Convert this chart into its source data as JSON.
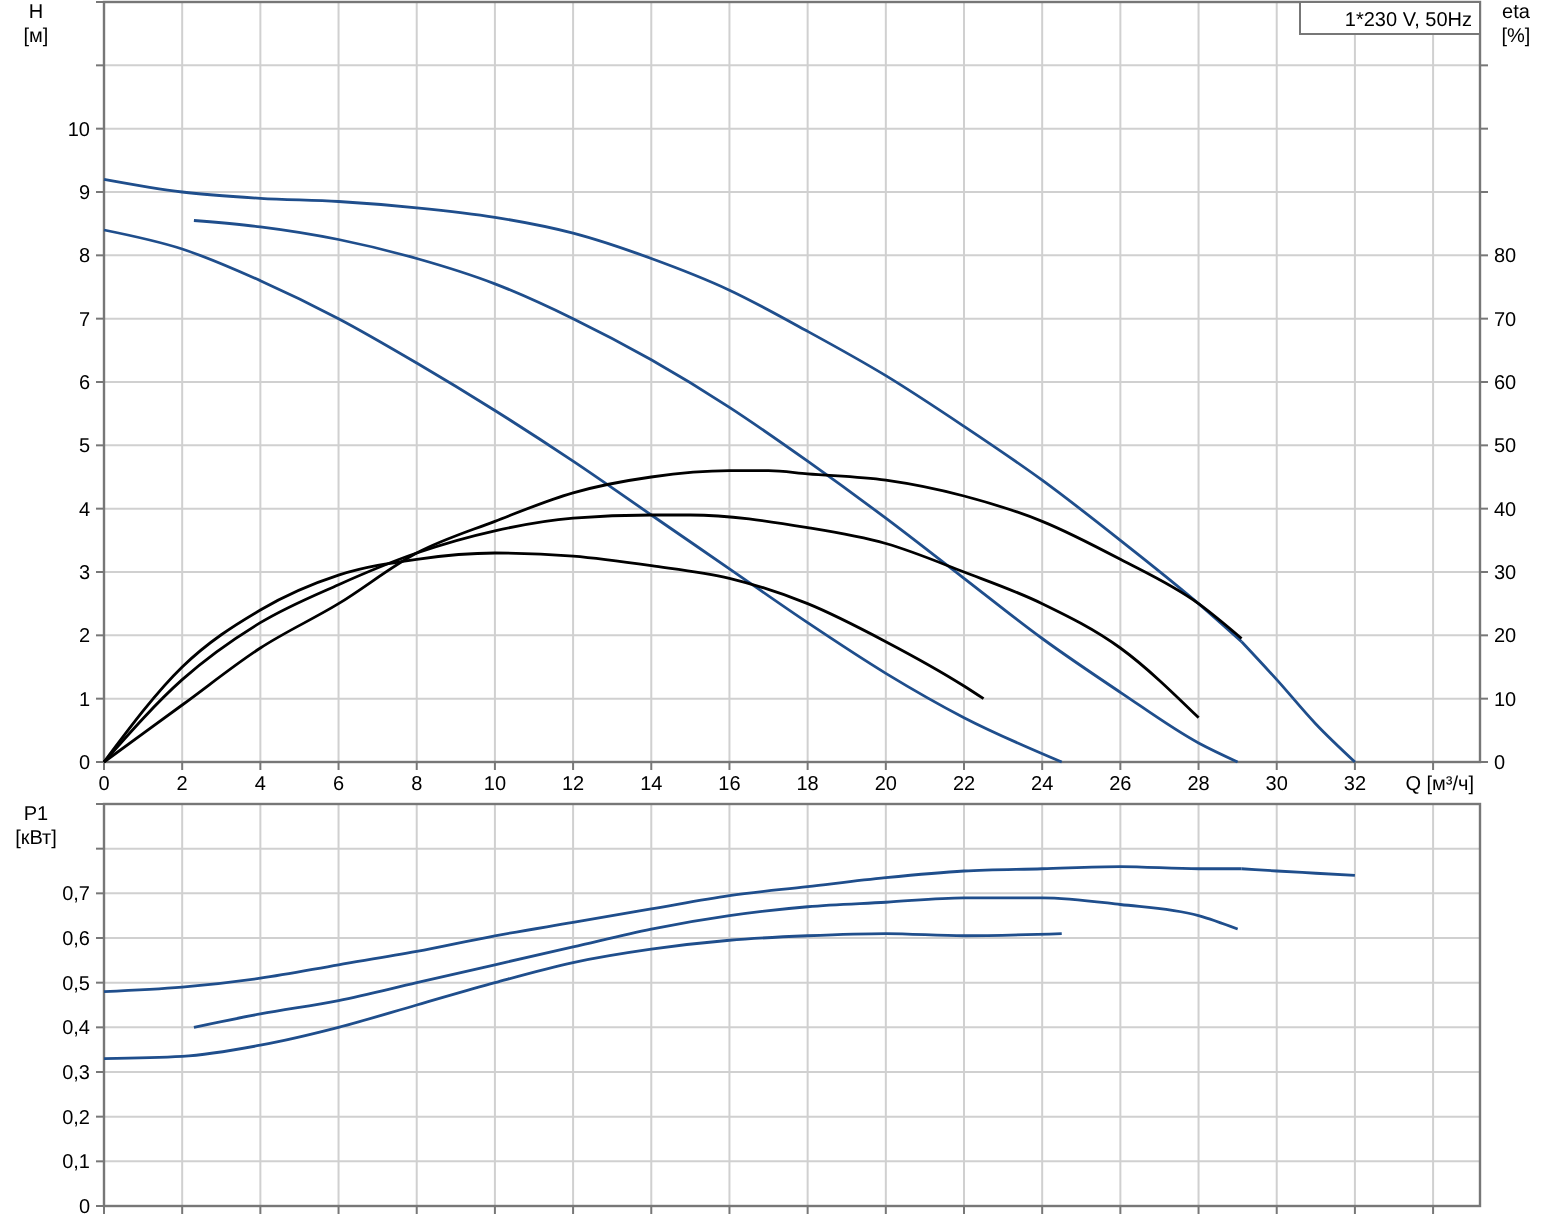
{
  "chart_data": [
    {
      "type": "line",
      "title": "1*230 V, 50Hz",
      "ylabel": "H [м]",
      "y2label": "eta [%]",
      "xlabel": "Q [м³/ч]",
      "xlim": [
        0,
        35.2
      ],
      "xticks": [
        0,
        2,
        4,
        6,
        8,
        10,
        12,
        14,
        16,
        18,
        20,
        22,
        24,
        26,
        28,
        30,
        32,
        {
          "value": 34,
          "label": null
        }
      ],
      "ylim": [
        0,
        12
      ],
      "yticks": [
        0,
        1,
        2,
        3,
        4,
        5,
        6,
        7,
        8,
        9,
        10,
        {
          "value": 11,
          "label": null
        },
        {
          "value": 12,
          "label": null
        }
      ],
      "y2lim": [
        0,
        120
      ],
      "y2ticks": [
        0,
        10,
        20,
        30,
        40,
        50,
        60,
        70,
        80,
        {
          "value": 90,
          "label": null
        },
        {
          "value": 100,
          "label": null
        },
        {
          "value": 110,
          "label": null
        }
      ],
      "grid": true,
      "series": [
        {
          "color": "#1f4e8c",
          "x": [
            0,
            2,
            4,
            6,
            8,
            10,
            12,
            14,
            16,
            18,
            20,
            22,
            24,
            26,
            28,
            29.1
          ],
          "values": [
            9.2,
            9.0,
            8.9,
            8.85,
            8.75,
            8.6,
            8.35,
            7.95,
            7.45,
            6.8,
            6.1,
            5.3,
            4.45,
            3.5,
            2.5,
            1.9
          ]
        },
        {
          "color": "#1f4e8c",
          "x": [
            29.1,
            30,
            31,
            32
          ],
          "values": [
            1.9,
            1.3,
            0.6,
            0
          ]
        },
        {
          "color": "#1f4e8c",
          "x": [
            2.3,
            4,
            6,
            8,
            10,
            12,
            14,
            16,
            18,
            20,
            22,
            24,
            26,
            28,
            29
          ],
          "values": [
            8.55,
            8.45,
            8.25,
            7.95,
            7.55,
            7.0,
            6.35,
            5.6,
            4.75,
            3.85,
            2.9,
            1.95,
            1.1,
            0.3,
            0
          ]
        },
        {
          "color": "#1f4e8c",
          "x": [
            0,
            2,
            4,
            6,
            8,
            10,
            12,
            14,
            16,
            18,
            20,
            22,
            24.5
          ],
          "values": [
            8.4,
            8.1,
            7.6,
            7.0,
            6.3,
            5.55,
            4.75,
            3.9,
            3.05,
            2.2,
            1.4,
            0.7,
            0
          ]
        },
        {
          "color": "#000000",
          "axis": "y2",
          "x": [
            0,
            2,
            4,
            6,
            8,
            10,
            12,
            14,
            16,
            17,
            18,
            20,
            22,
            24,
            26,
            28,
            29.1
          ],
          "values": [
            0,
            9,
            18,
            25,
            33,
            38,
            42.5,
            45,
            46,
            46,
            45.5,
            44.5,
            42,
            38,
            32,
            25,
            19.5
          ]
        },
        {
          "color": "#000000",
          "axis": "y2",
          "x": [
            0,
            2,
            4,
            6,
            8,
            10,
            12,
            14,
            15,
            18,
            20,
            22,
            24,
            26,
            28
          ],
          "values": [
            0,
            13,
            22,
            28,
            33,
            36.5,
            38.5,
            39,
            39,
            37,
            34.5,
            30,
            25,
            18,
            7
          ]
        },
        {
          "color": "#000000",
          "axis": "y2",
          "x": [
            0,
            2,
            4,
            6,
            8,
            10,
            12,
            14,
            16,
            18,
            20,
            22,
            22.5
          ],
          "values": [
            0,
            15,
            24,
            29.5,
            32,
            33,
            32.5,
            31,
            29,
            25,
            19,
            12,
            10
          ]
        }
      ]
    },
    {
      "type": "line",
      "ylabel": "P1 [кВт]",
      "xlim": [
        0,
        35.2
      ],
      "xticks": [
        0,
        2,
        4,
        6,
        8,
        10,
        12,
        14,
        16,
        18,
        20,
        22,
        24,
        26,
        28,
        30,
        32,
        34
      ],
      "ylim": [
        0,
        0.9
      ],
      "yticks": [
        {
          "value": 0,
          "label": "0"
        },
        {
          "value": 0.1,
          "label": "0,1"
        },
        {
          "value": 0.2,
          "label": "0,2"
        },
        {
          "value": 0.3,
          "label": "0,3"
        },
        {
          "value": 0.4,
          "label": "0,4"
        },
        {
          "value": 0.5,
          "label": "0,5"
        },
        {
          "value": 0.6,
          "label": "0,6"
        },
        {
          "value": 0.7,
          "label": "0,7"
        },
        {
          "value": 0.8,
          "label": null
        },
        {
          "value": 0.9,
          "label": null
        }
      ],
      "tick_labels": "y",
      "grid": true,
      "series": [
        {
          "color": "#1f4e8c",
          "x": [
            0,
            2,
            4,
            6,
            8,
            10,
            12,
            14,
            16,
            18,
            20,
            22,
            24,
            26,
            28,
            29.1
          ],
          "values": [
            0.48,
            0.49,
            0.51,
            0.54,
            0.57,
            0.605,
            0.635,
            0.665,
            0.695,
            0.715,
            0.735,
            0.75,
            0.755,
            0.76,
            0.755,
            0.755
          ]
        },
        {
          "color": "#1f4e8c",
          "x": [
            29.1,
            30,
            31,
            32
          ],
          "values": [
            0.755,
            0.75,
            0.745,
            0.74
          ]
        },
        {
          "color": "#1f4e8c",
          "x": [
            2.3,
            4,
            6,
            8,
            10,
            12,
            14,
            16,
            18,
            20,
            22,
            24,
            26,
            28,
            29
          ],
          "values": [
            0.4,
            0.43,
            0.46,
            0.5,
            0.54,
            0.58,
            0.62,
            0.65,
            0.67,
            0.68,
            0.69,
            0.69,
            0.675,
            0.65,
            0.62
          ]
        },
        {
          "color": "#1f4e8c",
          "x": [
            0,
            2,
            4,
            6,
            8,
            10,
            12,
            14,
            16,
            18,
            20,
            22,
            24.5
          ],
          "values": [
            0.33,
            0.335,
            0.36,
            0.4,
            0.45,
            0.5,
            0.545,
            0.575,
            0.595,
            0.605,
            0.61,
            0.605,
            0.61
          ]
        }
      ]
    }
  ]
}
